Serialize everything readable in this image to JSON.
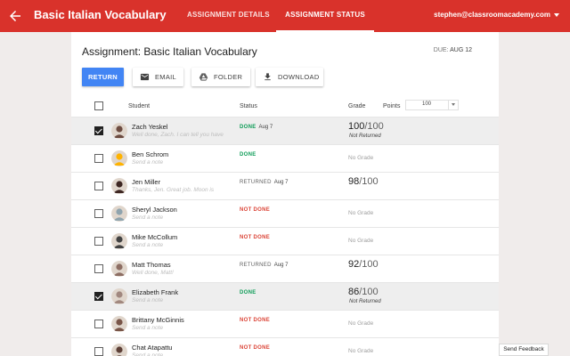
{
  "header": {
    "title": "Basic Italian Vocabulary",
    "tabs": [
      {
        "label": "ASSIGNMENT DETAILS",
        "active": false
      },
      {
        "label": "ASSIGNMENT STATUS",
        "active": true
      }
    ],
    "account_email": "stephen@classroomacademy.com",
    "accent_color": "#d9322b"
  },
  "assignment": {
    "title": "Assignment: Basic Italian Vocabulary",
    "due_label": "DUE:",
    "due_date": "AUG 12"
  },
  "toolbar": {
    "return_label": "RETURN",
    "email_label": "EMAIL",
    "email_icon": "mail-icon",
    "folder_label": "FOLDER",
    "folder_icon": "drive-icon",
    "download_label": "DOWNLOAD",
    "download_icon": "download-icon",
    "return_color": "#4285f4"
  },
  "table": {
    "headers": {
      "student": "Student",
      "status": "Status",
      "grade": "Grade",
      "points": "Points"
    },
    "points_value": "100",
    "rows": [
      {
        "name": "Zach Yeskel",
        "note": "Well done, Zach. I can tell you have",
        "status": "DONE",
        "status_kind": "done",
        "status_date": "Aug 7",
        "grade": "100",
        "grade_of": "/100",
        "grade_note": "Not Returned",
        "selected": true,
        "avatar_color": "#6d4c41"
      },
      {
        "name": "Ben Schrom",
        "note": "Send a note",
        "status": "DONE",
        "status_kind": "done",
        "status_date": "",
        "grade": "",
        "grade_of": "",
        "grade_note": "",
        "no_grade": "No Grade",
        "selected": false,
        "avatar_color": "#ffb300"
      },
      {
        "name": "Jen Miller",
        "note": "Thanks, Jen. Great job. Moon is",
        "status": "RETURNED",
        "status_kind": "returned",
        "status_date": "Aug 7",
        "grade": "98",
        "grade_of": "/100",
        "grade_note": "",
        "selected": false,
        "avatar_color": "#3e2723"
      },
      {
        "name": "Sheryl Jackson",
        "note": "Send a note",
        "status": "NOT DONE",
        "status_kind": "notdone",
        "status_date": "",
        "grade": "",
        "grade_of": "",
        "grade_note": "",
        "no_grade": "No Grade",
        "selected": false,
        "avatar_color": "#90a4ae"
      },
      {
        "name": "Mike McCollum",
        "note": "Send a note",
        "status": "NOT DONE",
        "status_kind": "notdone",
        "status_date": "",
        "grade": "",
        "grade_of": "",
        "grade_note": "",
        "no_grade": "No Grade",
        "selected": false,
        "avatar_color": "#424242"
      },
      {
        "name": "Matt Thomas",
        "note": "Well done, Matt!",
        "status": "RETURNED",
        "status_kind": "returned",
        "status_date": "Aug 7",
        "grade": "92",
        "grade_of": "/100",
        "grade_note": "",
        "selected": false,
        "avatar_color": "#8d6e63"
      },
      {
        "name": "Elizabeth Frank",
        "note": "Send a note",
        "status": "DONE",
        "status_kind": "done",
        "status_date": "",
        "grade": "86",
        "grade_of": "/100",
        "grade_note": "Not Returned",
        "selected": true,
        "avatar_color": "#a1887f"
      },
      {
        "name": "Brittany McGinnis",
        "note": "Send a note",
        "status": "NOT DONE",
        "status_kind": "notdone",
        "status_date": "",
        "grade": "",
        "grade_of": "",
        "grade_note": "",
        "no_grade": "No Grade",
        "selected": false,
        "avatar_color": "#795548"
      },
      {
        "name": "Chat Atapattu",
        "note": "Send a note",
        "status": "NOT DONE",
        "status_kind": "notdone",
        "status_date": "",
        "grade": "",
        "grade_of": "",
        "grade_note": "",
        "no_grade": "No Grade",
        "selected": false,
        "avatar_color": "#5d4037"
      }
    ]
  },
  "feedback_label": "Send Feedback"
}
